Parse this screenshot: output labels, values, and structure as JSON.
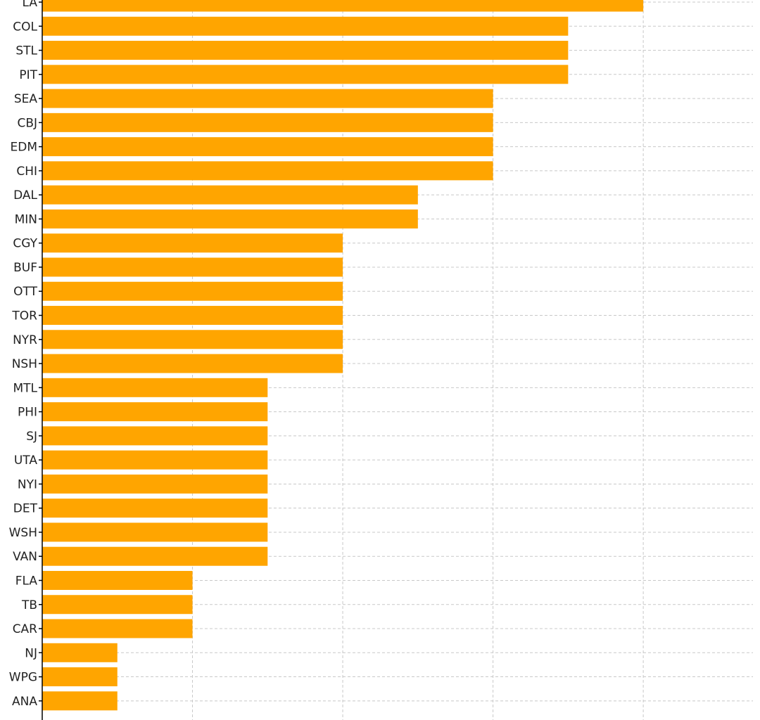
{
  "chart_data": {
    "type": "bar",
    "orientation": "horizontal",
    "categories": [
      "LA",
      "COL",
      "STL",
      "PIT",
      "SEA",
      "CBJ",
      "EDM",
      "CHI",
      "DAL",
      "MIN",
      "CGY",
      "BUF",
      "OTT",
      "TOR",
      "NYR",
      "NSH",
      "MTL",
      "PHI",
      "SJ",
      "UTA",
      "NYI",
      "DET",
      "WSH",
      "VAN",
      "FLA",
      "TB",
      "CAR",
      "NJ",
      "WPG",
      "ANA"
    ],
    "values": [
      8,
      7,
      7,
      7,
      6,
      6,
      6,
      6,
      5,
      5,
      4,
      4,
      4,
      4,
      4,
      4,
      3,
      3,
      3,
      3,
      3,
      3,
      3,
      3,
      2,
      2,
      2,
      1,
      1,
      1
    ],
    "xlim": [
      0,
      9.46
    ],
    "grid": true,
    "colors": {
      "bar": "#FFA500",
      "grid": "#c8c8c8",
      "axis": "#000000"
    }
  }
}
